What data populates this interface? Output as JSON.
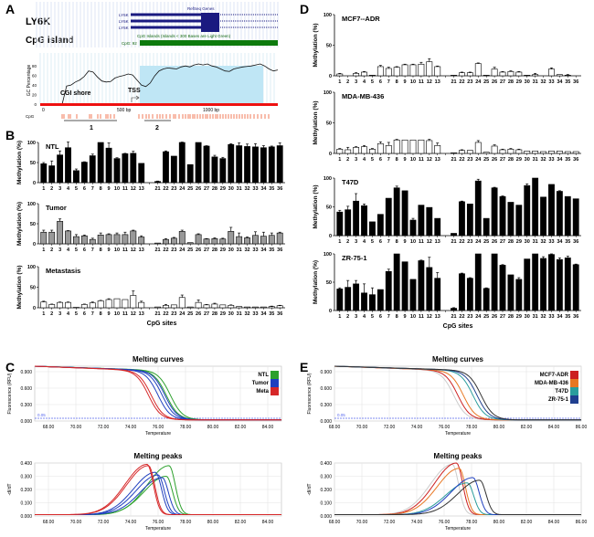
{
  "panels": {
    "A": "A",
    "B": "B",
    "C": "C",
    "D": "D",
    "E": "E"
  },
  "panelA": {
    "gene_label": "LY6K",
    "cgi_label": "CpG island",
    "refseq_title": "RefSeq Genes",
    "transcripts": [
      "LY6K",
      "LY6K",
      "LY6K"
    ],
    "cgi_track_title": "CpG Islands (Islands < 300 Bases are Light Green)",
    "cgi_track_label": "CpG: 92",
    "gc_ylabel": "GC Percentage",
    "gc_yticks": [
      "0",
      "20",
      "40",
      "60",
      "80"
    ],
    "gc_xticks": [
      "0",
      "500 bp",
      "1000 bp"
    ],
    "shore_label": "CGI shore",
    "tss_label": "TSS",
    "cpg_row_label": "CpG",
    "amplicons": [
      "1",
      "2"
    ]
  },
  "chart_data": [
    {
      "type": "bar",
      "panel": "B",
      "title": "NTL",
      "ylabel": "Methylation (%)",
      "xlabel": "",
      "ylim": [
        0,
        100
      ],
      "yticks": [
        "0",
        "50",
        "100"
      ],
      "bar_color": "#000000",
      "categories": [
        "1",
        "2",
        "3",
        "4",
        "5",
        "6",
        "7",
        "8",
        "9",
        "10",
        "11",
        "12",
        "13",
        "",
        "21",
        "22",
        "23",
        "24",
        "25",
        "26",
        "27",
        "28",
        "29",
        "30",
        "31",
        "32",
        "33",
        "34",
        "35",
        "36"
      ],
      "values": [
        47,
        42,
        69,
        87,
        30,
        51,
        67,
        100,
        86,
        60,
        72,
        73,
        48,
        null,
        3,
        77,
        66,
        100,
        45,
        100,
        91,
        64,
        60,
        95,
        92,
        90,
        89,
        87,
        89,
        92
      ],
      "errors": [
        3,
        12,
        10,
        14,
        4,
        1,
        4,
        0,
        13,
        2,
        1,
        5,
        0,
        null,
        1,
        2,
        0,
        1,
        0,
        0,
        1,
        4,
        3,
        2,
        7,
        6,
        8,
        5,
        2,
        7
      ]
    },
    {
      "type": "bar",
      "panel": "B",
      "title": "Tumor",
      "ylabel": "Methylation (%)",
      "xlabel": "",
      "ylim": [
        0,
        100
      ],
      "yticks": [
        "0",
        "50",
        "100"
      ],
      "bar_color": "#999999",
      "categories": [
        "1",
        "2",
        "3",
        "4",
        "5",
        "6",
        "7",
        "8",
        "9",
        "10",
        "11",
        "12",
        "13",
        "",
        "21",
        "22",
        "23",
        "24",
        "25",
        "26",
        "27",
        "28",
        "29",
        "30",
        "31",
        "32",
        "33",
        "34",
        "35",
        "36"
      ],
      "values": [
        29,
        29,
        56,
        32,
        18,
        20,
        11,
        22,
        23,
        23,
        23,
        32,
        17,
        null,
        2,
        11,
        14,
        31,
        3,
        23,
        12,
        13,
        12,
        31,
        18,
        15,
        21,
        19,
        21,
        27
      ],
      "errors": [
        5,
        5,
        6,
        1,
        5,
        2,
        3,
        5,
        2,
        4,
        6,
        2,
        3,
        null,
        0,
        2,
        2,
        3,
        0,
        2,
        1,
        2,
        2,
        10,
        9,
        2,
        9,
        10,
        6,
        2
      ],
      "xlabel_shown": false
    },
    {
      "type": "bar",
      "panel": "B",
      "title": "Metastasis",
      "ylabel": "Methylation (%)",
      "xlabel": "CpG sites",
      "ylim": [
        0,
        100
      ],
      "yticks": [
        "0",
        "50",
        "100"
      ],
      "bar_color": "#ffffff",
      "categories": [
        "1",
        "2",
        "3",
        "4",
        "5",
        "6",
        "7",
        "8",
        "9",
        "10",
        "11",
        "12",
        "13",
        "",
        "21",
        "22",
        "23",
        "24",
        "25",
        "26",
        "27",
        "28",
        "29",
        "30",
        "31",
        "32",
        "33",
        "34",
        "35",
        "36"
      ],
      "values": [
        14,
        8,
        13,
        13,
        1,
        8,
        12,
        17,
        20,
        22,
        20,
        30,
        13,
        null,
        2,
        6,
        7,
        25,
        2,
        13,
        7,
        9,
        7,
        6,
        3,
        2,
        2,
        2,
        3,
        5
      ],
      "errors": [
        2,
        1,
        1,
        1,
        0,
        1,
        2,
        1,
        2,
        0,
        0,
        11,
        3,
        null,
        0,
        2,
        0,
        6,
        0,
        6,
        1,
        2,
        0,
        1,
        0,
        0,
        0,
        0,
        1,
        1
      ]
    },
    {
      "type": "bar",
      "panel": "D",
      "title": "MCF7--ADR",
      "ylabel": "Methylation (%)",
      "xlabel": "",
      "ylim": [
        0,
        100
      ],
      "yticks": [
        "0",
        "50",
        "100"
      ],
      "bar_color": "#ffffff",
      "categories": [
        "1",
        "2",
        "3",
        "4",
        "5",
        "6",
        "7",
        "8",
        "9",
        "10",
        "11",
        "12",
        "13",
        "",
        "21",
        "22",
        "23",
        "24",
        "25",
        "26",
        "27",
        "28",
        "29",
        "30",
        "31",
        "32",
        "33",
        "34",
        "35",
        "36"
      ],
      "values": [
        3,
        0,
        4,
        6,
        1,
        15,
        12,
        14,
        18,
        18,
        19,
        23,
        15,
        null,
        1,
        5,
        5,
        20,
        1,
        11,
        6,
        7,
        6,
        1,
        2,
        0,
        11,
        2,
        1,
        0
      ],
      "errors": [
        1,
        0,
        1,
        1,
        0,
        2,
        2,
        1,
        1,
        1,
        3,
        5,
        1,
        null,
        0,
        1,
        1,
        1,
        0,
        3,
        1,
        1,
        1,
        0,
        2,
        0,
        2,
        0,
        1,
        0
      ]
    },
    {
      "type": "bar",
      "panel": "D",
      "title": "MDA-MB-436",
      "ylabel": "Methylation (%)",
      "xlabel": "",
      "ylim": [
        0,
        100
      ],
      "yticks": [
        "0",
        "50",
        "100"
      ],
      "bar_color": "#ffffff",
      "categories": [
        "1",
        "2",
        "3",
        "4",
        "5",
        "6",
        "7",
        "8",
        "9",
        "10",
        "11",
        "12",
        "13",
        "",
        "21",
        "22",
        "23",
        "24",
        "25",
        "26",
        "27",
        "28",
        "29",
        "30",
        "31",
        "32",
        "33",
        "34",
        "35",
        "36"
      ],
      "values": [
        7,
        6,
        10,
        11,
        7,
        16,
        13,
        22,
        22,
        22,
        22,
        21,
        13,
        null,
        1,
        5,
        5,
        18,
        2,
        12,
        6,
        7,
        6,
        4,
        4,
        3,
        4,
        4,
        3,
        3
      ],
      "errors": [
        1,
        4,
        1,
        2,
        1,
        3,
        5,
        1,
        0,
        0,
        0,
        2,
        4,
        null,
        0,
        1,
        0,
        3,
        0,
        2,
        1,
        1,
        1,
        0,
        0,
        0,
        0,
        0,
        0,
        0
      ]
    },
    {
      "type": "bar",
      "panel": "D",
      "title": "T47D",
      "ylabel": "Methylation (%)",
      "xlabel": "",
      "ylim": [
        0,
        100
      ],
      "yticks": [
        "0",
        "50",
        "100"
      ],
      "bar_color": "#000000",
      "categories": [
        "1",
        "2",
        "3",
        "4",
        "5",
        "6",
        "7",
        "8",
        "9",
        "10",
        "11",
        "12",
        "13",
        "",
        "21",
        "22",
        "23",
        "24",
        "25",
        "26",
        "27",
        "28",
        "29",
        "30",
        "31",
        "32",
        "33",
        "34",
        "35",
        "36"
      ],
      "values": [
        41,
        45,
        60,
        52,
        24,
        37,
        65,
        83,
        78,
        27,
        53,
        49,
        30,
        null,
        4,
        59,
        55,
        95,
        30,
        83,
        68,
        58,
        53,
        87,
        100,
        67,
        89,
        77,
        68,
        64
      ],
      "errors": [
        3,
        6,
        13,
        3,
        0,
        0,
        0,
        3,
        0,
        3,
        0,
        0,
        0,
        null,
        0,
        1,
        0,
        3,
        0,
        1,
        1,
        0,
        0,
        3,
        0,
        0,
        0,
        1,
        0,
        0
      ]
    },
    {
      "type": "bar",
      "panel": "D",
      "title": "ZR-75-1",
      "ylabel": "Methylation (%)",
      "xlabel": "CpG sites",
      "ylim": [
        0,
        100
      ],
      "yticks": [
        "0",
        "50",
        "100"
      ],
      "bar_color": "#000000",
      "categories": [
        "1",
        "2",
        "3",
        "4",
        "5",
        "6",
        "7",
        "8",
        "9",
        "10",
        "11",
        "12",
        "13",
        "",
        "21",
        "22",
        "23",
        "24",
        "25",
        "26",
        "27",
        "28",
        "29",
        "30",
        "31",
        "32",
        "33",
        "34",
        "35",
        "36"
      ],
      "values": [
        38,
        41,
        47,
        31,
        28,
        37,
        69,
        100,
        86,
        55,
        88,
        76,
        57,
        null,
        4,
        65,
        57,
        100,
        39,
        100,
        80,
        63,
        55,
        91,
        100,
        92,
        99,
        90,
        93,
        81
      ],
      "errors": [
        2,
        12,
        6,
        16,
        12,
        0,
        4,
        0,
        0,
        0,
        1,
        18,
        10,
        null,
        1,
        1,
        1,
        0,
        1,
        0,
        1,
        0,
        3,
        0,
        0,
        3,
        1,
        3,
        3,
        1
      ]
    },
    {
      "type": "line",
      "panel": "C",
      "title": "Melting curves",
      "xlabel": "Temperature",
      "ylabel": "Fluorescence (RFU)",
      "xlim": [
        67,
        85
      ],
      "ylim": [
        0,
        1.0
      ],
      "xticks": [
        "68.00",
        "70.00",
        "72.00",
        "74.00",
        "76.00",
        "78.00",
        "80.00",
        "82.00",
        "84.00"
      ],
      "yticks": [
        "0.000",
        "0.300",
        "0.600",
        "0.900"
      ],
      "threshold": {
        "value": 0.05,
        "label": "0.05"
      },
      "legend": "top-right",
      "series": [
        {
          "name": "NTL",
          "color": "#2ca02c",
          "tm": [
            76.6,
            76.9
          ]
        },
        {
          "name": "Tumor",
          "color": "#1f3fbf",
          "tm": [
            76.0,
            76.3,
            76.5
          ]
        },
        {
          "name": "Meta",
          "color": "#d62728",
          "tm": [
            75.3,
            75.5
          ]
        }
      ]
    },
    {
      "type": "line",
      "panel": "C",
      "title": "Melting peaks",
      "xlabel": "Temperature",
      "ylabel": "-dI/dT",
      "xlim": [
        67,
        85
      ],
      "ylim": [
        0,
        0.4
      ],
      "xticks": [
        "68.00",
        "70.00",
        "72.00",
        "74.00",
        "76.00",
        "78.00",
        "80.00",
        "82.00",
        "84.00"
      ],
      "yticks": [
        "0.000",
        "0.100",
        "0.200",
        "0.300",
        "0.400"
      ],
      "series": [
        {
          "name": "NTL",
          "color": "#2ca02c",
          "peaks": [
            [
              76.8,
              0.37
            ],
            [
              76.6,
              0.29
            ]
          ]
        },
        {
          "name": "Tumor",
          "color": "#1f3fbf",
          "peaks": [
            [
              75.8,
              0.32
            ],
            [
              76.0,
              0.3
            ],
            [
              76.3,
              0.28
            ]
          ]
        },
        {
          "name": "Meta",
          "color": "#d62728",
          "peaks": [
            [
              75.2,
              0.38
            ],
            [
              75.3,
              0.37
            ]
          ]
        }
      ]
    },
    {
      "type": "line",
      "panel": "E",
      "title": "Melting curves",
      "xlabel": "Temperature",
      "ylabel": "Fluorescence (RFU)",
      "xlim": [
        68,
        86
      ],
      "ylim": [
        0,
        1.0
      ],
      "xticks": [
        "68.00",
        "70.00",
        "72.00",
        "74.00",
        "76.00",
        "78.00",
        "80.00",
        "82.00",
        "84.00",
        "86.00"
      ],
      "yticks": [
        "0.000",
        "0.300",
        "0.600",
        "0.900"
      ],
      "threshold": {
        "value": 0.05,
        "label": "0.05"
      },
      "legend": "top-right",
      "series": [
        {
          "name": "control",
          "color": "#cccccc",
          "tm": [
            76.7
          ],
          "in_legend": false
        },
        {
          "name": "MCF7-ADR",
          "color": "#cc1f1f",
          "tm": [
            77.0
          ]
        },
        {
          "name": "MDA-MB-436",
          "color": "#e87722",
          "tm": [
            77.4
          ]
        },
        {
          "name": "T47D",
          "color": "#2a9d9d",
          "tm": [
            78.1
          ]
        },
        {
          "name": "ZR-75-1",
          "color": "#1f3f8f",
          "tm": [
            78.4
          ]
        },
        {
          "name": "dark",
          "color": "#333333",
          "tm": [
            78.7
          ],
          "in_legend": false
        }
      ]
    },
    {
      "type": "line",
      "panel": "E",
      "title": "Melting peaks",
      "xlabel": "Temperature",
      "ylabel": "-dI/dT",
      "xlim": [
        68,
        86
      ],
      "ylim": [
        0,
        0.4
      ],
      "xticks": [
        "68.00",
        "70.00",
        "72.00",
        "74.00",
        "76.00",
        "78.00",
        "80.00",
        "82.00",
        "84.00",
        "86.00"
      ],
      "yticks": [
        "0.000",
        "0.100",
        "0.200",
        "0.300",
        "0.400"
      ],
      "series": [
        {
          "name": "control",
          "color": "#cccccc",
          "peaks": [
            [
              76.6,
              0.38
            ]
          ]
        },
        {
          "name": "MCF7-ADR",
          "color": "#cc1f1f",
          "peaks": [
            [
              76.9,
              0.39
            ]
          ]
        },
        {
          "name": "MDA-MB-436",
          "color": "#e87722",
          "peaks": [
            [
              77.1,
              0.35
            ]
          ]
        },
        {
          "name": "T47D",
          "color": "#2a9d9d",
          "peaks": [
            [
              77.7,
              0.24
            ]
          ]
        },
        {
          "name": "ZR-75-1",
          "color": "#1f3fbf",
          "peaks": [
            [
              78.1,
              0.28
            ]
          ]
        },
        {
          "name": "dark",
          "color": "#333333",
          "peaks": [
            [
              78.6,
              0.26
            ]
          ]
        }
      ]
    }
  ]
}
